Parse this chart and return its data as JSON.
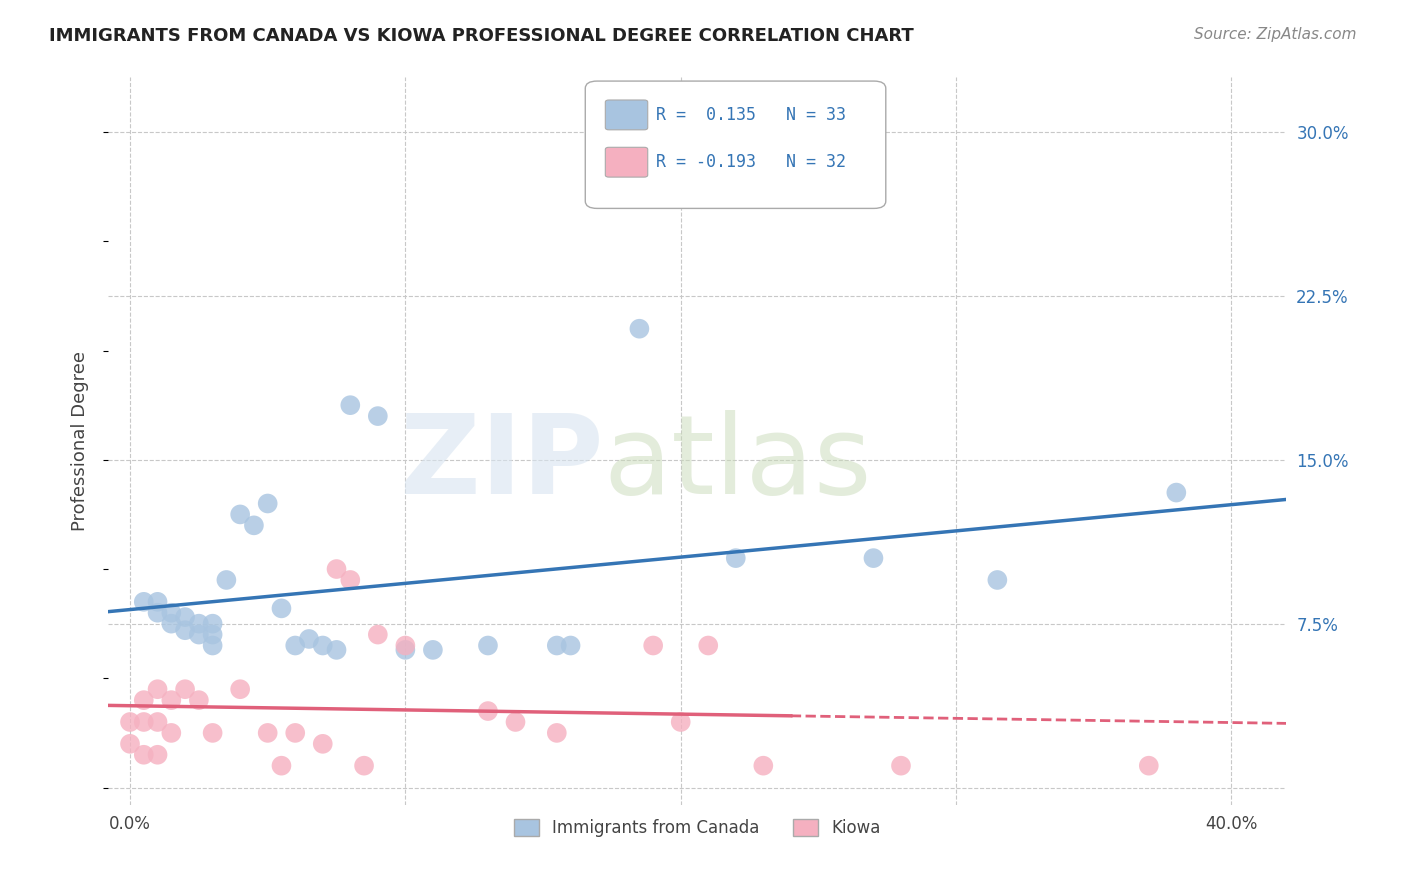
{
  "title": "IMMIGRANTS FROM CANADA VS KIOWA PROFESSIONAL DEGREE CORRELATION CHART",
  "source": "Source: ZipAtlas.com",
  "ylabel": "Professional Degree",
  "x_ticks": [
    0.0,
    0.1,
    0.2,
    0.3,
    0.4
  ],
  "x_tick_labels": [
    "0.0%",
    "",
    "",
    "",
    "40.0%"
  ],
  "y_ticks": [
    0.0,
    0.075,
    0.15,
    0.225,
    0.3
  ],
  "y_tick_labels_right": [
    "",
    "7.5%",
    "15.0%",
    "22.5%",
    "30.0%"
  ],
  "xlim": [
    -0.008,
    0.42
  ],
  "ylim": [
    -0.008,
    0.325
  ],
  "background_color": "#ffffff",
  "grid_color": "#c8c8c8",
  "blue_color": "#a8c4e0",
  "pink_color": "#f5b0c0",
  "blue_line_color": "#3575b5",
  "pink_line_color": "#e0607a",
  "blue_scatter_x": [
    0.005,
    0.01,
    0.01,
    0.015,
    0.015,
    0.02,
    0.02,
    0.025,
    0.025,
    0.03,
    0.03,
    0.03,
    0.035,
    0.04,
    0.045,
    0.05,
    0.055,
    0.06,
    0.065,
    0.07,
    0.075,
    0.08,
    0.09,
    0.1,
    0.11,
    0.13,
    0.155,
    0.16,
    0.185,
    0.22,
    0.27,
    0.315,
    0.38
  ],
  "blue_scatter_y": [
    0.085,
    0.085,
    0.08,
    0.08,
    0.075,
    0.078,
    0.072,
    0.075,
    0.07,
    0.075,
    0.07,
    0.065,
    0.095,
    0.125,
    0.12,
    0.13,
    0.082,
    0.065,
    0.068,
    0.065,
    0.063,
    0.175,
    0.17,
    0.063,
    0.063,
    0.065,
    0.065,
    0.065,
    0.21,
    0.105,
    0.105,
    0.095,
    0.135
  ],
  "pink_scatter_x": [
    0.0,
    0.0,
    0.005,
    0.005,
    0.005,
    0.01,
    0.01,
    0.01,
    0.015,
    0.015,
    0.02,
    0.025,
    0.03,
    0.04,
    0.05,
    0.055,
    0.06,
    0.07,
    0.075,
    0.08,
    0.085,
    0.09,
    0.1,
    0.13,
    0.14,
    0.155,
    0.19,
    0.2,
    0.21,
    0.23,
    0.28,
    0.37
  ],
  "pink_scatter_y": [
    0.03,
    0.02,
    0.04,
    0.03,
    0.015,
    0.045,
    0.03,
    0.015,
    0.04,
    0.025,
    0.045,
    0.04,
    0.025,
    0.045,
    0.025,
    0.01,
    0.025,
    0.02,
    0.1,
    0.095,
    0.01,
    0.07,
    0.065,
    0.035,
    0.03,
    0.025,
    0.065,
    0.03,
    0.065,
    0.01,
    0.01,
    0.01
  ],
  "legend_entries": [
    "Immigrants from Canada",
    "Kiowa"
  ],
  "legend_box_colors": [
    "#a8c4e0",
    "#f5b0c0"
  ],
  "legend_r_values": [
    " 0.135",
    "-0.193"
  ],
  "legend_n_values": [
    "N = 33",
    "N = 32"
  ]
}
